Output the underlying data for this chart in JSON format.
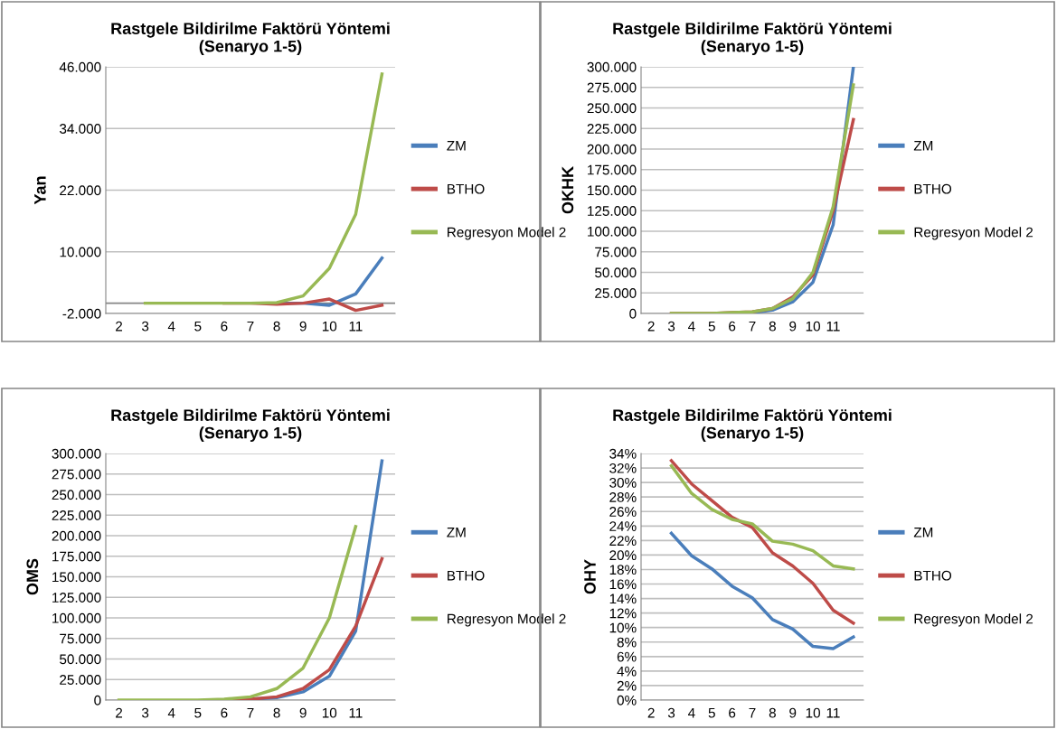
{
  "chart_data": [
    {
      "type": "line",
      "title": "Rastgele Bildirilme Faktörü Yöntemi\n(Senaryo 1-5)",
      "ylabel": "Yan",
      "categories": [
        "2",
        "3",
        "4",
        "5",
        "6",
        "7",
        "8",
        "9",
        "10",
        "11",
        null
      ],
      "series": [
        {
          "name": "ZM",
          "color": "#4a7ebb",
          "values": [
            null,
            null,
            null,
            null,
            null,
            null,
            0,
            0,
            -400,
            1800,
            8800
          ]
        },
        {
          "name": "BTHO",
          "color": "#be4b48",
          "values": [
            null,
            null,
            null,
            null,
            0,
            0,
            -200,
            0,
            800,
            -1400,
            -400
          ]
        },
        {
          "name": "Regresyon Model 2",
          "color": "#98b954",
          "values": [
            null,
            0,
            0,
            0,
            0,
            0,
            100,
            1400,
            6800,
            17300,
            44600
          ]
        }
      ],
      "ylim": [
        -2000,
        46000
      ],
      "yticks": [
        {
          "value": -2000,
          "label": "-2.000"
        },
        {
          "value": 10000,
          "label": "10.000"
        },
        {
          "value": 22000,
          "label": "22.000"
        },
        {
          "value": 34000,
          "label": "34.000"
        },
        {
          "value": 46000,
          "label": "46.000"
        }
      ],
      "ref_lines": [
        {
          "axis": "y",
          "value": 0,
          "color": "#868686"
        }
      ],
      "grid": "y",
      "legend": "right",
      "marker": "none",
      "line_style": "solid"
    },
    {
      "type": "line",
      "title": "Rastgele Bildirilme Faktörü Yöntemi\n(Senaryo 1-5)",
      "ylabel": "OKHK",
      "categories": [
        "2",
        "3",
        "4",
        "5",
        "6",
        "7",
        "8",
        "9",
        "10",
        "11",
        null
      ],
      "series": [
        {
          "name": "ZM",
          "color": "#4a7ebb",
          "values": [
            null,
            null,
            null,
            null,
            0,
            1000,
            4000,
            14000,
            38000,
            108000,
            300000
          ]
        },
        {
          "name": "BTHO",
          "color": "#be4b48",
          "values": [
            null,
            0,
            0,
            0,
            1000,
            2000,
            6000,
            20000,
            47000,
            125000,
            236000
          ]
        },
        {
          "name": "Regresyon Model 2",
          "color": "#98b954",
          "values": [
            null,
            0,
            0,
            0,
            1000,
            2000,
            6000,
            18000,
            50000,
            130000,
            278000
          ]
        }
      ],
      "ylim": [
        0,
        300000
      ],
      "yticks": [
        0,
        {
          "value": 25000,
          "label": "25.000"
        },
        {
          "value": 50000,
          "label": "50.000"
        },
        {
          "value": 75000,
          "label": "75.000"
        },
        {
          "value": 100000,
          "label": "100.000"
        },
        {
          "value": 125000,
          "label": "125.000"
        },
        {
          "value": 150000,
          "label": "150.000"
        },
        {
          "value": 175000,
          "label": "175.000"
        },
        {
          "value": 200000,
          "label": "200.000"
        },
        {
          "value": 225000,
          "label": "225.000"
        },
        {
          "value": 250000,
          "label": "250.000"
        },
        {
          "value": 275000,
          "label": "275.000"
        },
        {
          "value": 300000,
          "label": "300.000"
        }
      ],
      "grid": "y",
      "legend": "right",
      "marker": "none",
      "line_style": "solid"
    },
    {
      "type": "line",
      "title": "Rastgele Bildirilme Faktörü Yöntemi\n(Senaryo 1-5)",
      "ylabel": "OMS",
      "categories": [
        "2",
        "3",
        "4",
        "5",
        "6",
        "7",
        "8",
        "9",
        "10",
        "11",
        null
      ],
      "series": [
        {
          "name": "ZM",
          "color": "#4a7ebb",
          "values": [
            null,
            null,
            null,
            null,
            0,
            1000,
            3000,
            10000,
            29000,
            84000,
            291000
          ]
        },
        {
          "name": "BTHO",
          "color": "#be4b48",
          "values": [
            null,
            null,
            null,
            null,
            0,
            1000,
            4000,
            14000,
            37000,
            90000,
            172000
          ]
        },
        {
          "name": "Regresyon Model 2",
          "color": "#98b954",
          "values": [
            0,
            0,
            0,
            0,
            1000,
            4000,
            14000,
            39000,
            100000,
            211000,
            null
          ]
        }
      ],
      "ylim": [
        0,
        300000
      ],
      "yticks": [
        0,
        {
          "value": 25000,
          "label": "25.000"
        },
        {
          "value": 50000,
          "label": "50.000"
        },
        {
          "value": 75000,
          "label": "75.000"
        },
        {
          "value": 100000,
          "label": "100.000"
        },
        {
          "value": 125000,
          "label": "125.000"
        },
        {
          "value": 150000,
          "label": "150.000"
        },
        {
          "value": 175000,
          "label": "175.000"
        },
        {
          "value": 200000,
          "label": "200.000"
        },
        {
          "value": 225000,
          "label": "225.000"
        },
        {
          "value": 250000,
          "label": "250.000"
        },
        {
          "value": 275000,
          "label": "275.000"
        },
        {
          "value": 300000,
          "label": "300.000"
        }
      ],
      "grid": "y",
      "legend": "right",
      "marker": "none",
      "line_style": "solid"
    },
    {
      "type": "line",
      "title": "Rastgele Bildirilme Faktörü Yöntemi\n(Senaryo 1-5)",
      "ylabel": "OHY",
      "categories": [
        "2",
        "3",
        "4",
        "5",
        "6",
        "7",
        "8",
        "9",
        "10",
        "11",
        null
      ],
      "series": [
        {
          "name": "ZM",
          "color": "#4a7ebb",
          "values": [
            null,
            23.0,
            19.9,
            18.1,
            15.7,
            14.1,
            11.1,
            9.8,
            7.4,
            7.1,
            8.7
          ]
        },
        {
          "name": "BTHO",
          "color": "#be4b48",
          "values": [
            null,
            33.0,
            29.8,
            27.5,
            25.2,
            23.8,
            20.3,
            18.5,
            16.1,
            12.4,
            10.6
          ]
        },
        {
          "name": "Regresyon Model 2",
          "color": "#98b954",
          "values": [
            null,
            32.3,
            28.5,
            26.3,
            24.9,
            24.3,
            21.9,
            21.5,
            20.6,
            18.5,
            18.1
          ]
        }
      ],
      "ylim": [
        0,
        34
      ],
      "yticks": [
        {
          "value": 0,
          "label": "0%"
        },
        {
          "value": 2,
          "label": "2%"
        },
        {
          "value": 4,
          "label": "4%"
        },
        {
          "value": 6,
          "label": "6%"
        },
        {
          "value": 8,
          "label": "8%"
        },
        {
          "value": 10,
          "label": "10%"
        },
        {
          "value": 12,
          "label": "12%"
        },
        {
          "value": 14,
          "label": "14%"
        },
        {
          "value": 16,
          "label": "16%"
        },
        {
          "value": 18,
          "label": "18%"
        },
        {
          "value": 20,
          "label": "20%"
        },
        {
          "value": 22,
          "label": "22%"
        },
        {
          "value": 24,
          "label": "24%"
        },
        {
          "value": 26,
          "label": "26%"
        },
        {
          "value": 28,
          "label": "28%"
        },
        {
          "value": 30,
          "label": "30%"
        },
        {
          "value": 32,
          "label": "32%"
        },
        {
          "value": 34,
          "label": "34%"
        }
      ],
      "grid": "y",
      "legend": "right",
      "marker": "none",
      "line_style": "solid"
    }
  ]
}
